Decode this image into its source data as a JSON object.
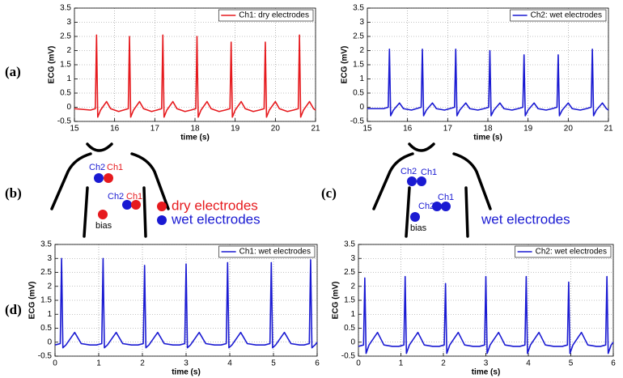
{
  "panel_labels": [
    "(a)",
    "(b)",
    "(c)",
    "(d)"
  ],
  "diagrams": [
    {
      "labels": [
        "Ch2",
        "Ch1",
        "Ch2",
        "Ch1",
        "bias"
      ],
      "legend": [
        "dry electrodes",
        "wet electrodes"
      ]
    },
    {
      "labels": [
        "Ch2",
        "Ch1",
        "Ch2",
        "Ch1",
        "bias"
      ],
      "legend": [
        "wet electrodes"
      ]
    }
  ],
  "chart_data": [
    {
      "type": "line",
      "xlabel": "time (s)",
      "ylabel": "ECG (mV)",
      "xlim": [
        15,
        21
      ],
      "ylim": [
        -0.5,
        3.5
      ],
      "xticks": [
        15,
        16,
        17,
        18,
        19,
        20,
        21
      ],
      "yticks": [
        -0.5,
        0,
        0.5,
        1,
        1.5,
        2,
        2.5,
        3,
        3.5
      ],
      "grid": true,
      "legend": "upper right",
      "x": [
        15.0,
        15.4,
        15.52,
        15.55,
        15.58,
        15.65,
        15.8,
        15.9,
        16.1,
        16.22,
        16.34,
        16.37,
        16.4,
        16.47,
        16.62,
        16.72,
        16.92,
        17.05,
        17.17,
        17.2,
        17.23,
        17.3,
        17.45,
        17.55,
        17.75,
        17.9,
        18.02,
        18.05,
        18.08,
        18.15,
        18.3,
        18.4,
        18.6,
        18.75,
        18.87,
        18.9,
        18.93,
        19.0,
        19.15,
        19.25,
        19.45,
        19.6,
        19.72,
        19.75,
        19.78,
        19.85,
        20.0,
        20.1,
        20.3,
        20.45,
        20.57,
        20.6,
        20.63,
        20.7,
        20.85,
        20.95,
        21.0
      ],
      "series": [
        {
          "name": "Ch1: dry electrodes",
          "color": "#e61a1e",
          "values": [
            -0.05,
            -0.1,
            -0.05,
            2.55,
            -0.35,
            -0.1,
            0.2,
            -0.05,
            -0.15,
            -0.1,
            -0.05,
            2.5,
            -0.35,
            -0.1,
            0.2,
            -0.05,
            -0.15,
            -0.1,
            -0.05,
            2.55,
            -0.35,
            -0.1,
            0.2,
            -0.05,
            -0.15,
            -0.1,
            -0.05,
            2.5,
            -0.35,
            -0.1,
            0.2,
            -0.05,
            -0.15,
            -0.1,
            -0.05,
            2.3,
            -0.35,
            -0.1,
            0.2,
            -0.05,
            -0.15,
            -0.1,
            -0.05,
            2.3,
            -0.35,
            -0.1,
            0.2,
            -0.05,
            -0.15,
            -0.1,
            -0.05,
            2.55,
            -0.35,
            -0.1,
            0.2,
            -0.05,
            -0.1
          ]
        }
      ]
    },
    {
      "type": "line",
      "xlabel": "time (s)",
      "ylabel": "ECG (mV)",
      "xlim": [
        15,
        21
      ],
      "ylim": [
        -0.5,
        3.5
      ],
      "xticks": [
        15,
        16,
        17,
        18,
        19,
        20,
        21
      ],
      "yticks": [
        -0.5,
        0,
        0.5,
        1,
        1.5,
        2,
        2.5,
        3,
        3.5
      ],
      "grid": true,
      "legend": "upper right",
      "x": [
        15.0,
        15.4,
        15.52,
        15.55,
        15.58,
        15.65,
        15.8,
        15.9,
        16.1,
        16.22,
        16.34,
        16.37,
        16.4,
        16.47,
        16.62,
        16.72,
        16.92,
        17.05,
        17.17,
        17.2,
        17.23,
        17.3,
        17.45,
        17.55,
        17.75,
        17.9,
        18.02,
        18.05,
        18.08,
        18.15,
        18.3,
        18.4,
        18.6,
        18.75,
        18.87,
        18.9,
        18.93,
        19.0,
        19.15,
        19.25,
        19.45,
        19.6,
        19.72,
        19.75,
        19.78,
        19.85,
        20.0,
        20.1,
        20.3,
        20.45,
        20.57,
        20.6,
        20.63,
        20.7,
        20.85,
        20.95,
        21.0
      ],
      "series": [
        {
          "name": "Ch2: wet electrodes",
          "color": "#1a1ad2",
          "values": [
            -0.05,
            -0.05,
            0.0,
            2.05,
            -0.3,
            -0.1,
            0.15,
            -0.05,
            -0.1,
            -0.05,
            0.0,
            2.05,
            -0.3,
            -0.1,
            0.15,
            -0.05,
            -0.1,
            -0.05,
            0.0,
            2.05,
            -0.3,
            -0.1,
            0.15,
            -0.05,
            -0.1,
            -0.05,
            0.0,
            2.0,
            -0.3,
            -0.1,
            0.15,
            -0.05,
            -0.1,
            -0.05,
            0.0,
            1.85,
            -0.3,
            -0.1,
            0.15,
            -0.05,
            -0.1,
            -0.05,
            0.0,
            1.85,
            -0.3,
            -0.1,
            0.15,
            -0.05,
            -0.1,
            -0.05,
            0.0,
            2.05,
            -0.3,
            -0.1,
            0.15,
            -0.05,
            -0.1
          ]
        }
      ]
    },
    {
      "type": "line",
      "xlabel": "time (s)",
      "ylabel": "ECG (mV)",
      "xlim": [
        0,
        6
      ],
      "ylim": [
        -0.5,
        3.5
      ],
      "xticks": [
        0,
        1,
        2,
        3,
        4,
        5,
        6
      ],
      "yticks": [
        -0.5,
        0,
        0.5,
        1,
        1.5,
        2,
        2.5,
        3,
        3.5
      ],
      "grid": true,
      "legend": "upper right",
      "x": [
        0.0,
        0.12,
        0.15,
        0.18,
        0.25,
        0.45,
        0.6,
        0.8,
        0.95,
        1.07,
        1.1,
        1.13,
        1.2,
        1.4,
        1.55,
        1.75,
        1.9,
        2.02,
        2.05,
        2.08,
        2.15,
        2.35,
        2.5,
        2.7,
        2.85,
        2.97,
        3.0,
        3.03,
        3.1,
        3.3,
        3.45,
        3.65,
        3.8,
        3.92,
        3.95,
        3.98,
        4.05,
        4.25,
        4.4,
        4.6,
        4.8,
        4.92,
        4.95,
        4.98,
        5.05,
        5.25,
        5.4,
        5.6,
        5.7,
        5.82,
        5.85,
        5.88,
        5.95,
        6.0
      ],
      "series": [
        {
          "name": "Ch1: wet electrodes",
          "color": "#1a1ad2",
          "values": [
            -0.1,
            -0.05,
            3.0,
            -0.2,
            -0.1,
            0.35,
            -0.05,
            -0.1,
            -0.1,
            -0.05,
            3.0,
            -0.2,
            -0.1,
            0.35,
            -0.05,
            -0.1,
            -0.1,
            -0.05,
            2.75,
            -0.2,
            -0.1,
            0.35,
            -0.05,
            -0.1,
            -0.1,
            -0.05,
            2.8,
            -0.2,
            -0.1,
            0.35,
            -0.05,
            -0.1,
            -0.1,
            -0.05,
            2.85,
            -0.2,
            -0.1,
            0.35,
            -0.05,
            -0.1,
            -0.1,
            -0.05,
            2.85,
            -0.2,
            -0.1,
            0.35,
            -0.05,
            -0.1,
            -0.1,
            -0.05,
            2.95,
            -0.2,
            -0.1,
            0.0
          ]
        }
      ]
    },
    {
      "type": "line",
      "xlabel": "time (s)",
      "ylabel": "ECG (mV)",
      "xlim": [
        0,
        6
      ],
      "ylim": [
        -0.5,
        3.5
      ],
      "xticks": [
        0,
        1,
        2,
        3,
        4,
        5,
        6
      ],
      "yticks": [
        -0.5,
        0,
        0.5,
        1,
        1.5,
        2,
        2.5,
        3,
        3.5
      ],
      "grid": true,
      "legend": "upper right",
      "x": [
        0.0,
        0.12,
        0.15,
        0.18,
        0.25,
        0.45,
        0.6,
        0.8,
        0.95,
        1.07,
        1.1,
        1.13,
        1.2,
        1.4,
        1.55,
        1.75,
        1.9,
        2.02,
        2.05,
        2.08,
        2.15,
        2.35,
        2.5,
        2.7,
        2.85,
        2.97,
        3.0,
        3.03,
        3.1,
        3.3,
        3.45,
        3.65,
        3.8,
        3.92,
        3.95,
        3.98,
        4.05,
        4.25,
        4.4,
        4.6,
        4.8,
        4.92,
        4.95,
        4.98,
        5.05,
        5.25,
        5.4,
        5.6,
        5.7,
        5.82,
        5.85,
        5.88,
        5.95,
        6.0
      ],
      "series": [
        {
          "name": "Ch2: wet electrodes",
          "color": "#1a1ad2",
          "values": [
            -0.15,
            -0.1,
            2.3,
            -0.4,
            -0.1,
            0.35,
            -0.1,
            -0.15,
            -0.15,
            -0.1,
            2.35,
            -0.4,
            -0.1,
            0.35,
            -0.1,
            -0.15,
            -0.15,
            -0.1,
            2.1,
            -0.4,
            -0.1,
            0.35,
            -0.1,
            -0.15,
            -0.15,
            -0.1,
            2.35,
            -0.4,
            -0.1,
            0.35,
            -0.1,
            -0.15,
            -0.15,
            -0.1,
            2.35,
            -0.4,
            -0.1,
            0.35,
            -0.1,
            -0.15,
            -0.15,
            -0.1,
            2.15,
            -0.4,
            -0.1,
            0.35,
            -0.1,
            -0.15,
            -0.15,
            -0.1,
            2.35,
            -0.4,
            -0.1,
            0.0
          ]
        }
      ]
    }
  ]
}
